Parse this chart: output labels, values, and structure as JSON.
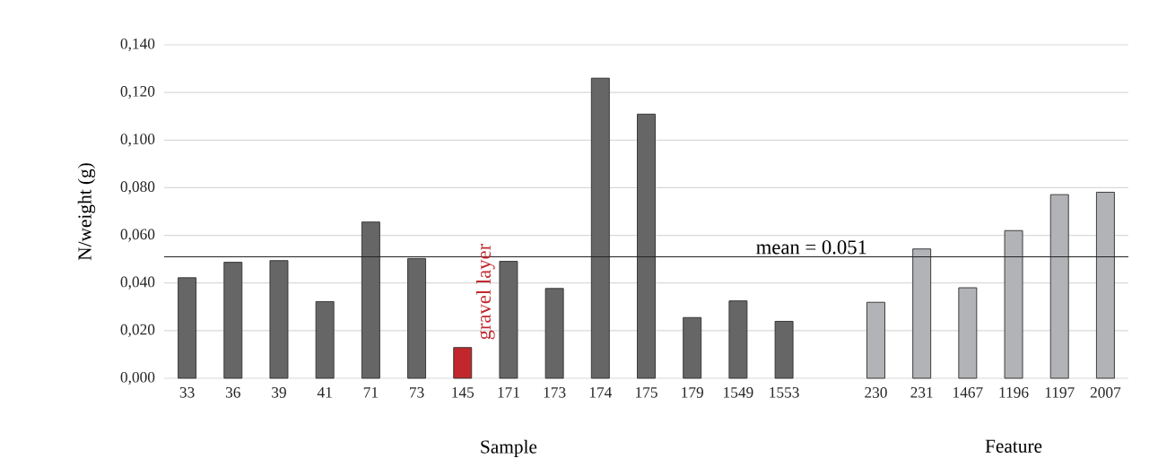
{
  "chart_data": {
    "type": "bar",
    "ylabel": "N/weight (g)",
    "categories": [
      "33",
      "36",
      "39",
      "41",
      "71",
      "73",
      "145",
      "171",
      "173",
      "174",
      "175",
      "179",
      "1549",
      "1553",
      null,
      "230",
      "231",
      "1467",
      "1196",
      "1197",
      "2007"
    ],
    "values": [
      0.0422,
      0.0487,
      0.0494,
      0.0322,
      0.0656,
      0.0503,
      0.0129,
      0.0491,
      0.0377,
      0.126,
      0.1109,
      0.0255,
      0.0325,
      0.0239,
      null,
      0.0319,
      0.0543,
      0.038,
      0.062,
      0.0771,
      0.0781
    ],
    "colors": [
      "#666666",
      "#666666",
      "#666666",
      "#666666",
      "#666666",
      "#666666",
      "#c1272d",
      "#666666",
      "#666666",
      "#666666",
      "#666666",
      "#666666",
      "#666666",
      "#666666",
      "#666666",
      "#b2b3b6",
      "#b2b3b6",
      "#b2b3b6",
      "#b2b3b6",
      "#b2b3b6",
      "#b2b3b6"
    ],
    "ylim": [
      0,
      0.14
    ],
    "yticks": [
      {
        "value": 0,
        "label": "0,000"
      },
      {
        "value": 0.02,
        "label": "0,020"
      },
      {
        "value": 0.04,
        "label": "0,040"
      },
      {
        "value": 0.06,
        "label": "0,060"
      },
      {
        "value": 0.08,
        "label": "0,080"
      },
      {
        "value": 0.1,
        "label": "0,100"
      },
      {
        "value": 0.12,
        "label": "0,120"
      },
      {
        "value": 0.14,
        "label": "0,140"
      }
    ],
    "grid": "y",
    "ref_lines": [
      {
        "axis": "y",
        "value": 0.051,
        "label": "mean = 0.051",
        "color": "#222222"
      }
    ],
    "annotations": [
      {
        "text": "gravel layer",
        "x": "145",
        "y": 0.0129
      },
      "Sample",
      "Feature"
    ]
  }
}
